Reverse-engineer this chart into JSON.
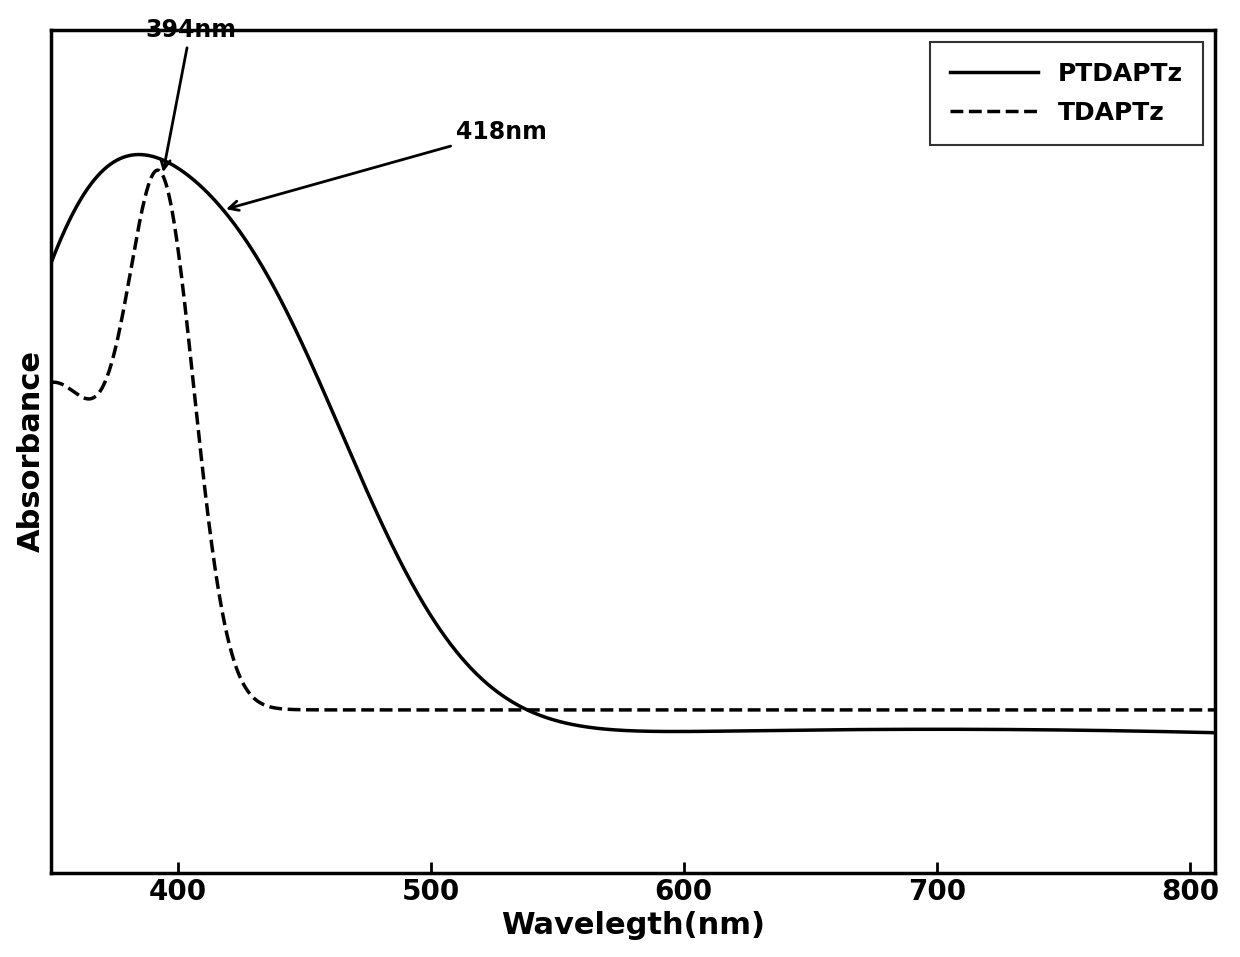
{
  "title": "",
  "xlabel": "Wavelegth(nm)",
  "ylabel": "Absorbance",
  "xlim": [
    350,
    810
  ],
  "ylim": [
    0.0,
    1.08
  ],
  "xticks": [
    400,
    500,
    600,
    700,
    800
  ],
  "background_color": "#ffffff",
  "line_color": "#000000",
  "annotation_394": "394nm",
  "annotation_418": "418nm",
  "legend_labels": [
    "PTDAPTz",
    "TDAPTz"
  ],
  "xlabel_fontsize": 22,
  "ylabel_fontsize": 22,
  "tick_fontsize": 20,
  "legend_fontsize": 18,
  "annotation_fontsize": 17
}
